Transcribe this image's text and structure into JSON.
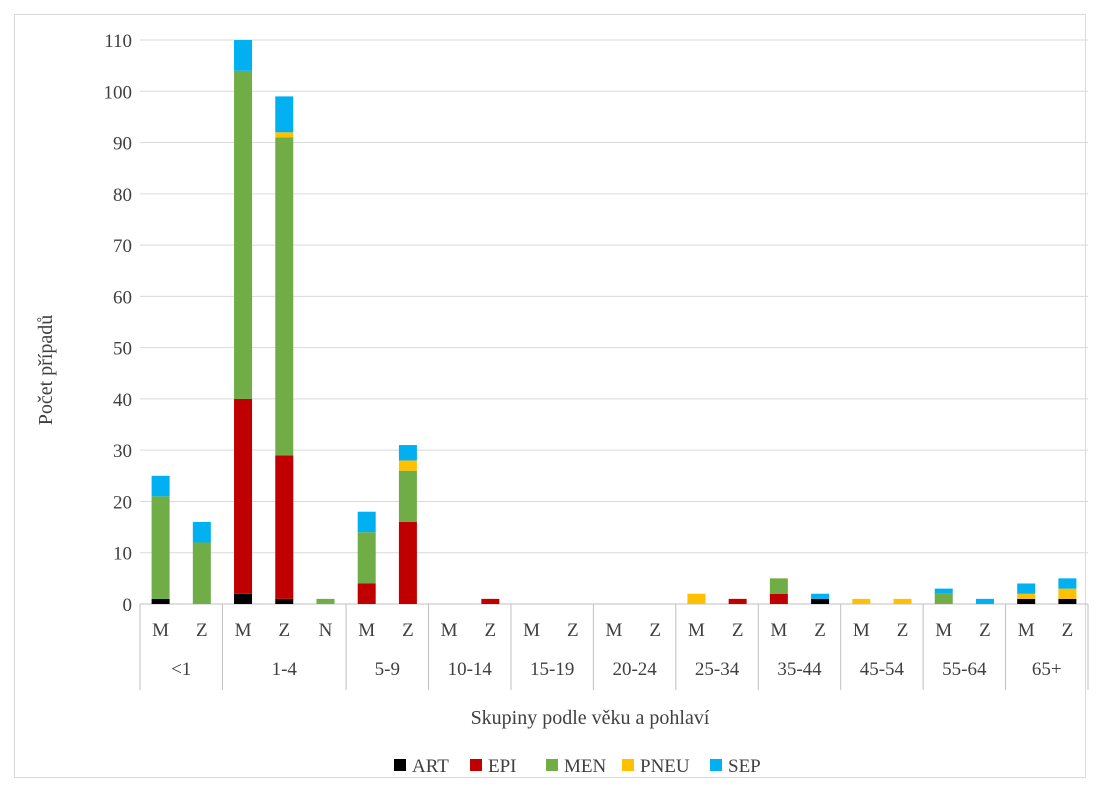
{
  "chart_data": {
    "type": "bar",
    "stacked": true,
    "ylabel": "Počet případů",
    "xlabel": "Skupiny podle věku a pohlaví",
    "ylim": [
      0,
      110
    ],
    "y_ticks": [
      0,
      10,
      20,
      30,
      40,
      50,
      60,
      70,
      80,
      90,
      100,
      110
    ],
    "grid": true,
    "legend_position": "bottom",
    "groups": [
      {
        "label": "<1",
        "sexes": [
          "M",
          "Z"
        ]
      },
      {
        "label": "1-4",
        "sexes": [
          "M",
          "Z",
          "N"
        ]
      },
      {
        "label": "5-9",
        "sexes": [
          "M",
          "Z"
        ]
      },
      {
        "label": "10-14",
        "sexes": [
          "M",
          "Z"
        ]
      },
      {
        "label": "15-19",
        "sexes": [
          "M",
          "Z"
        ]
      },
      {
        "label": "20-24",
        "sexes": [
          "M",
          "Z"
        ]
      },
      {
        "label": "25-34",
        "sexes": [
          "M",
          "Z"
        ]
      },
      {
        "label": "35-44",
        "sexes": [
          "M",
          "Z"
        ]
      },
      {
        "label": "45-54",
        "sexes": [
          "M",
          "Z"
        ]
      },
      {
        "label": "55-64",
        "sexes": [
          "M",
          "Z"
        ]
      },
      {
        "label": "65+",
        "sexes": [
          "M",
          "Z"
        ]
      }
    ],
    "series": [
      {
        "name": "ART",
        "color": "#000000",
        "values": [
          1,
          0,
          2,
          1,
          0,
          0,
          0,
          0,
          0,
          0,
          0,
          0,
          0,
          0,
          0,
          0,
          1,
          0,
          0,
          0,
          0,
          1,
          1
        ]
      },
      {
        "name": "EPI",
        "color": "#c00000",
        "values": [
          0,
          0,
          38,
          28,
          0,
          4,
          16,
          0,
          1,
          0,
          0,
          0,
          0,
          0,
          1,
          2,
          0,
          0,
          0,
          0,
          0,
          0,
          0
        ]
      },
      {
        "name": "MEN",
        "color": "#70ad47",
        "values": [
          20,
          12,
          64,
          62,
          1,
          10,
          10,
          0,
          0,
          0,
          0,
          0,
          0,
          0,
          0,
          3,
          0,
          0,
          0,
          2,
          0,
          0,
          0
        ]
      },
      {
        "name": "PNEU",
        "color": "#ffc000",
        "values": [
          0,
          0,
          0,
          1,
          0,
          0,
          2,
          0,
          0,
          0,
          0,
          0,
          0,
          2,
          0,
          0,
          0,
          1,
          1,
          0,
          0,
          1,
          2
        ]
      },
      {
        "name": "SEP",
        "color": "#00b0f0",
        "values": [
          4,
          4,
          6,
          7,
          0,
          4,
          3,
          0,
          0,
          0,
          0,
          0,
          0,
          0,
          0,
          0,
          1,
          0,
          0,
          1,
          1,
          2,
          2
        ]
      }
    ]
  }
}
